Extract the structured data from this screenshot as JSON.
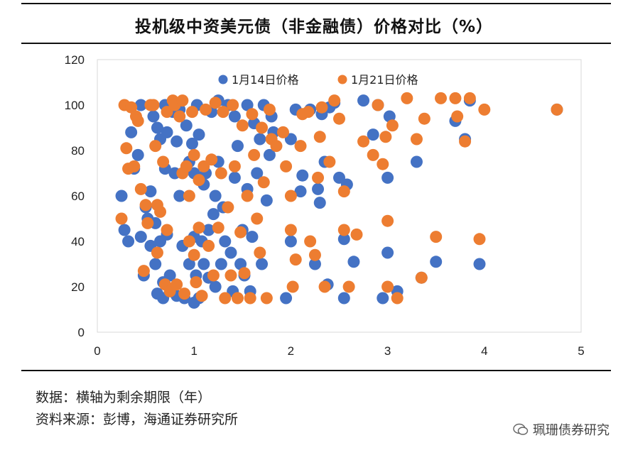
{
  "colors": {
    "series1": "#4472C4",
    "series2": "#ED7D31",
    "axis": "#D9D9D9",
    "text": "#222222"
  },
  "chart_data": {
    "type": "scatter",
    "title": "投机级中资美元债（非金融债）价格对比（%）",
    "xlabel": "",
    "ylabel": "",
    "xlim": [
      0,
      5
    ],
    "ylim": [
      0,
      120
    ],
    "xticks": [
      "0",
      "1",
      "2",
      "3",
      "4",
      "5"
    ],
    "yticks": [
      "0",
      "20",
      "40",
      "60",
      "80",
      "100",
      "120"
    ],
    "grid": false,
    "legend_position": "top-center",
    "series": [
      {
        "name": "1月14日价格",
        "points": [
          [
            0.25,
            60
          ],
          [
            0.28,
            45
          ],
          [
            0.32,
            40
          ],
          [
            0.35,
            88
          ],
          [
            0.38,
            72
          ],
          [
            0.42,
            78
          ],
          [
            0.45,
            100
          ],
          [
            0.45,
            42
          ],
          [
            0.48,
            25
          ],
          [
            0.5,
            55
          ],
          [
            0.52,
            50
          ],
          [
            0.55,
            38
          ],
          [
            0.55,
            62
          ],
          [
            0.58,
            95
          ],
          [
            0.6,
            48
          ],
          [
            0.6,
            30
          ],
          [
            0.62,
            90
          ],
          [
            0.62,
            17
          ],
          [
            0.65,
            40
          ],
          [
            0.65,
            85
          ],
          [
            0.68,
            22
          ],
          [
            0.68,
            15
          ],
          [
            0.7,
            100
          ],
          [
            0.7,
            72
          ],
          [
            0.72,
            88
          ],
          [
            0.72,
            43
          ],
          [
            0.75,
            25
          ],
          [
            0.78,
            97
          ],
          [
            0.78,
            18
          ],
          [
            0.8,
            70
          ],
          [
            0.82,
            84
          ],
          [
            0.82,
            16
          ],
          [
            0.85,
            60
          ],
          [
            0.85,
            98
          ],
          [
            0.88,
            38
          ],
          [
            0.9,
            15
          ],
          [
            0.92,
            91
          ],
          [
            0.95,
            75
          ],
          [
            0.95,
            30
          ],
          [
            0.98,
            83
          ],
          [
            1.0,
            70
          ],
          [
            1.0,
            42
          ],
          [
            1.0,
            13
          ],
          [
            1.02,
            25
          ],
          [
            1.03,
            100
          ],
          [
            1.05,
            15
          ],
          [
            1.05,
            87
          ],
          [
            1.08,
            40
          ],
          [
            1.1,
            65
          ],
          [
            1.1,
            30
          ],
          [
            1.12,
            70
          ],
          [
            1.15,
            45
          ],
          [
            1.15,
            24
          ],
          [
            1.18,
            97
          ],
          [
            1.2,
            52
          ],
          [
            1.22,
            60
          ],
          [
            1.22,
            20
          ],
          [
            1.25,
            75
          ],
          [
            1.25,
            102
          ],
          [
            1.28,
            30
          ],
          [
            1.3,
            55
          ],
          [
            1.32,
            40
          ],
          [
            1.35,
            100
          ],
          [
            1.38,
            35
          ],
          [
            1.4,
            18
          ],
          [
            1.42,
            68
          ],
          [
            1.42,
            95
          ],
          [
            1.45,
            82
          ],
          [
            1.48,
            30
          ],
          [
            1.5,
            45
          ],
          [
            1.52,
            25
          ],
          [
            1.55,
            100
          ],
          [
            1.55,
            63
          ],
          [
            1.58,
            18
          ],
          [
            1.6,
            42
          ],
          [
            1.62,
            92
          ],
          [
            1.65,
            70
          ],
          [
            1.68,
            85
          ],
          [
            1.7,
            30
          ],
          [
            1.72,
            100
          ],
          [
            1.75,
            58
          ],
          [
            1.78,
            78
          ],
          [
            1.8,
            95
          ],
          [
            1.82,
            88
          ],
          [
            1.95,
            15
          ],
          [
            2.0,
            40
          ],
          [
            2.0,
            85
          ],
          [
            2.05,
            98
          ],
          [
            2.1,
            62
          ],
          [
            2.12,
            69
          ],
          [
            2.2,
            98
          ],
          [
            2.25,
            30
          ],
          [
            2.28,
            63
          ],
          [
            2.3,
            57
          ],
          [
            2.32,
            96
          ],
          [
            2.35,
            75
          ],
          [
            2.38,
            21
          ],
          [
            2.4,
            99
          ],
          [
            2.45,
            101
          ],
          [
            2.5,
            68
          ],
          [
            2.55,
            41
          ],
          [
            2.55,
            15
          ],
          [
            2.58,
            65
          ],
          [
            2.65,
            31
          ],
          [
            2.75,
            102
          ],
          [
            2.85,
            87
          ],
          [
            2.9,
            100
          ],
          [
            2.95,
            15
          ],
          [
            3.0,
            68
          ],
          [
            3.0,
            35
          ],
          [
            3.02,
            95
          ],
          [
            3.1,
            18
          ],
          [
            3.3,
            75
          ],
          [
            3.35,
            24
          ],
          [
            3.5,
            31
          ],
          [
            3.7,
            93
          ],
          [
            3.8,
            85
          ],
          [
            3.85,
            102
          ],
          [
            3.95,
            30
          ],
          [
            4.75,
            98
          ]
        ]
      },
      {
        "name": "1月21日价格",
        "points": [
          [
            0.25,
            50
          ],
          [
            0.28,
            100
          ],
          [
            0.3,
            81
          ],
          [
            0.32,
            72
          ],
          [
            0.35,
            99
          ],
          [
            0.38,
            73
          ],
          [
            0.4,
            95
          ],
          [
            0.42,
            93
          ],
          [
            0.45,
            63
          ],
          [
            0.48,
            27
          ],
          [
            0.5,
            56
          ],
          [
            0.52,
            48
          ],
          [
            0.55,
            100
          ],
          [
            0.58,
            100
          ],
          [
            0.6,
            82
          ],
          [
            0.62,
            35
          ],
          [
            0.62,
            56
          ],
          [
            0.65,
            53
          ],
          [
            0.68,
            75
          ],
          [
            0.7,
            21
          ],
          [
            0.72,
            97
          ],
          [
            0.72,
            45
          ],
          [
            0.75,
            18
          ],
          [
            0.78,
            102
          ],
          [
            0.8,
            100
          ],
          [
            0.82,
            21
          ],
          [
            0.85,
            95
          ],
          [
            0.88,
            102
          ],
          [
            0.88,
            70
          ],
          [
            0.9,
            17
          ],
          [
            0.92,
            73
          ],
          [
            0.95,
            40
          ],
          [
            0.95,
            60
          ],
          [
            0.98,
            97
          ],
          [
            1.0,
            78
          ],
          [
            1.0,
            34
          ],
          [
            1.02,
            22
          ],
          [
            1.05,
            46
          ],
          [
            1.05,
            67
          ],
          [
            1.08,
            16
          ],
          [
            1.1,
            73
          ],
          [
            1.12,
            98
          ],
          [
            1.15,
            38
          ],
          [
            1.18,
            76
          ],
          [
            1.2,
            25
          ],
          [
            1.22,
            101
          ],
          [
            1.25,
            46
          ],
          [
            1.28,
            70
          ],
          [
            1.3,
            97
          ],
          [
            1.32,
            15
          ],
          [
            1.35,
            55
          ],
          [
            1.38,
            25
          ],
          [
            1.4,
            100
          ],
          [
            1.42,
            73
          ],
          [
            1.45,
            15
          ],
          [
            1.48,
            44
          ],
          [
            1.5,
            91
          ],
          [
            1.52,
            26
          ],
          [
            1.55,
            60
          ],
          [
            1.58,
            15
          ],
          [
            1.6,
            96
          ],
          [
            1.62,
            78
          ],
          [
            1.65,
            50
          ],
          [
            1.68,
            35
          ],
          [
            1.7,
            90
          ],
          [
            1.72,
            66
          ],
          [
            1.75,
            15
          ],
          [
            1.78,
            98
          ],
          [
            1.8,
            85
          ],
          [
            1.85,
            82
          ],
          [
            1.92,
            88
          ],
          [
            1.95,
            73
          ],
          [
            2.0,
            60
          ],
          [
            2.0,
            45
          ],
          [
            2.02,
            20
          ],
          [
            2.05,
            32
          ],
          [
            2.1,
            82
          ],
          [
            2.12,
            96
          ],
          [
            2.18,
            97
          ],
          [
            2.2,
            40
          ],
          [
            2.25,
            34
          ],
          [
            2.28,
            68
          ],
          [
            2.3,
            86
          ],
          [
            2.32,
            99
          ],
          [
            2.35,
            20
          ],
          [
            2.4,
            75
          ],
          [
            2.45,
            102
          ],
          [
            2.5,
            94
          ],
          [
            2.55,
            45
          ],
          [
            2.55,
            62
          ],
          [
            2.6,
            20
          ],
          [
            2.68,
            43
          ],
          [
            2.75,
            84
          ],
          [
            2.85,
            78
          ],
          [
            2.9,
            100
          ],
          [
            2.95,
            74
          ],
          [
            2.98,
            86
          ],
          [
            3.0,
            49
          ],
          [
            3.0,
            20
          ],
          [
            3.05,
            91
          ],
          [
            3.1,
            15
          ],
          [
            3.2,
            103
          ],
          [
            3.3,
            85
          ],
          [
            3.35,
            24
          ],
          [
            3.38,
            94
          ],
          [
            3.5,
            42
          ],
          [
            3.55,
            103
          ],
          [
            3.7,
            103
          ],
          [
            3.72,
            95
          ],
          [
            3.8,
            84
          ],
          [
            3.85,
            103
          ],
          [
            3.95,
            41
          ],
          [
            4.0,
            98
          ],
          [
            4.75,
            98
          ]
        ]
      }
    ]
  },
  "footer": {
    "note_line1": "数据：横轴为剩余期限（年）",
    "note_line2": "资料来源：彭博，海通证券研究所",
    "watermark": "珮珊债券研究"
  }
}
